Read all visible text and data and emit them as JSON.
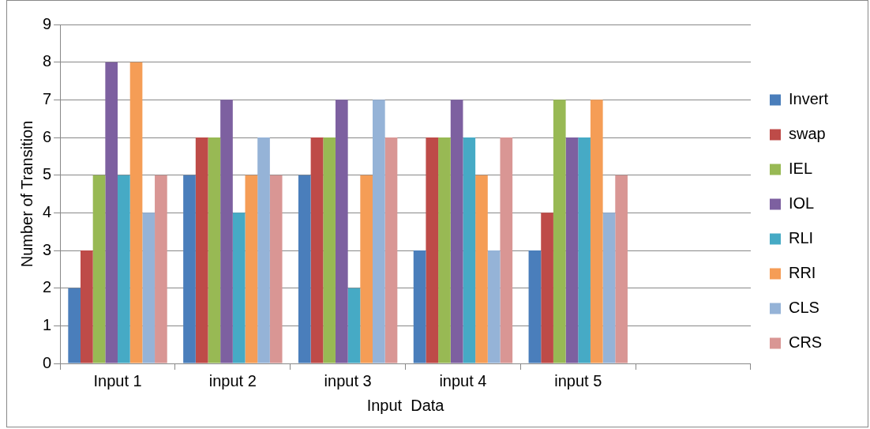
{
  "chart_data": {
    "type": "bar",
    "xlabel": "Input  Data",
    "ylabel": "Number of Transition",
    "categories": [
      "Input 1",
      "input 2",
      "input 3",
      "input 4",
      "input 5",
      null
    ],
    "series": [
      {
        "name": "Invert",
        "color": "#4a7ebb",
        "values": [
          2,
          5,
          5,
          3,
          3,
          null
        ]
      },
      {
        "name": "swap",
        "color": "#be4b48",
        "values": [
          3,
          6,
          6,
          6,
          4,
          null
        ]
      },
      {
        "name": "IEL",
        "color": "#98b954",
        "values": [
          5,
          6,
          6,
          6,
          7,
          null
        ]
      },
      {
        "name": "IOL",
        "color": "#7d60a0",
        "values": [
          8,
          7,
          7,
          7,
          6,
          null
        ]
      },
      {
        "name": "RLI",
        "color": "#46aac5",
        "values": [
          5,
          4,
          2,
          6,
          6,
          null
        ]
      },
      {
        "name": "RRI",
        "color": "#f59d56",
        "values": [
          8,
          5,
          5,
          5,
          7,
          null
        ]
      },
      {
        "name": "CLS",
        "color": "#95b3d7",
        "values": [
          4,
          6,
          7,
          3,
          4,
          null
        ]
      },
      {
        "name": "CRS",
        "color": "#d99694",
        "values": [
          5,
          5,
          6,
          6,
          5,
          null
        ]
      }
    ],
    "ylim": [
      0,
      9
    ],
    "yticks": [
      0,
      1,
      2,
      3,
      4,
      5,
      6,
      7,
      8,
      9
    ],
    "grid": "y",
    "legend": "right"
  }
}
